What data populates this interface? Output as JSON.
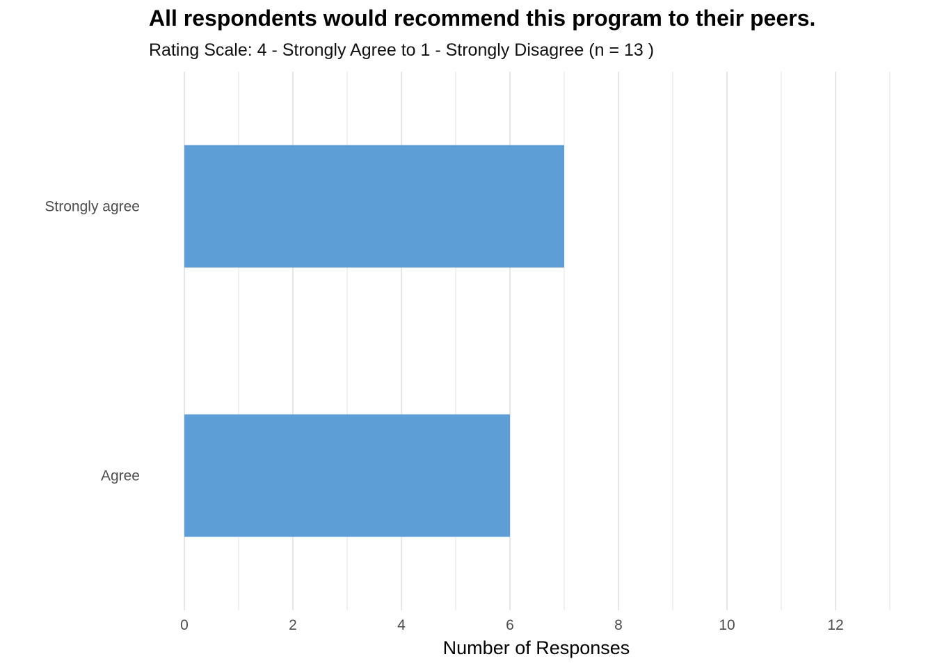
{
  "chart_data": {
    "type": "bar",
    "orientation": "horizontal",
    "title": "All respondents would recommend this program to their peers.",
    "subtitle": "Rating Scale: 4 - Strongly Agree to 1 - Strongly Disagree (n = 13 )",
    "xlabel": "Number of Responses",
    "ylabel": "",
    "categories": [
      "Strongly agree",
      "Agree"
    ],
    "values": [
      7,
      6
    ],
    "xlim": [
      0,
      13
    ],
    "xticks": [
      0,
      2,
      4,
      6,
      8,
      10,
      12
    ],
    "grid": "vertical major and minor",
    "bar_color": "#5e9ed6",
    "grid_color": "#e6e6e6"
  }
}
